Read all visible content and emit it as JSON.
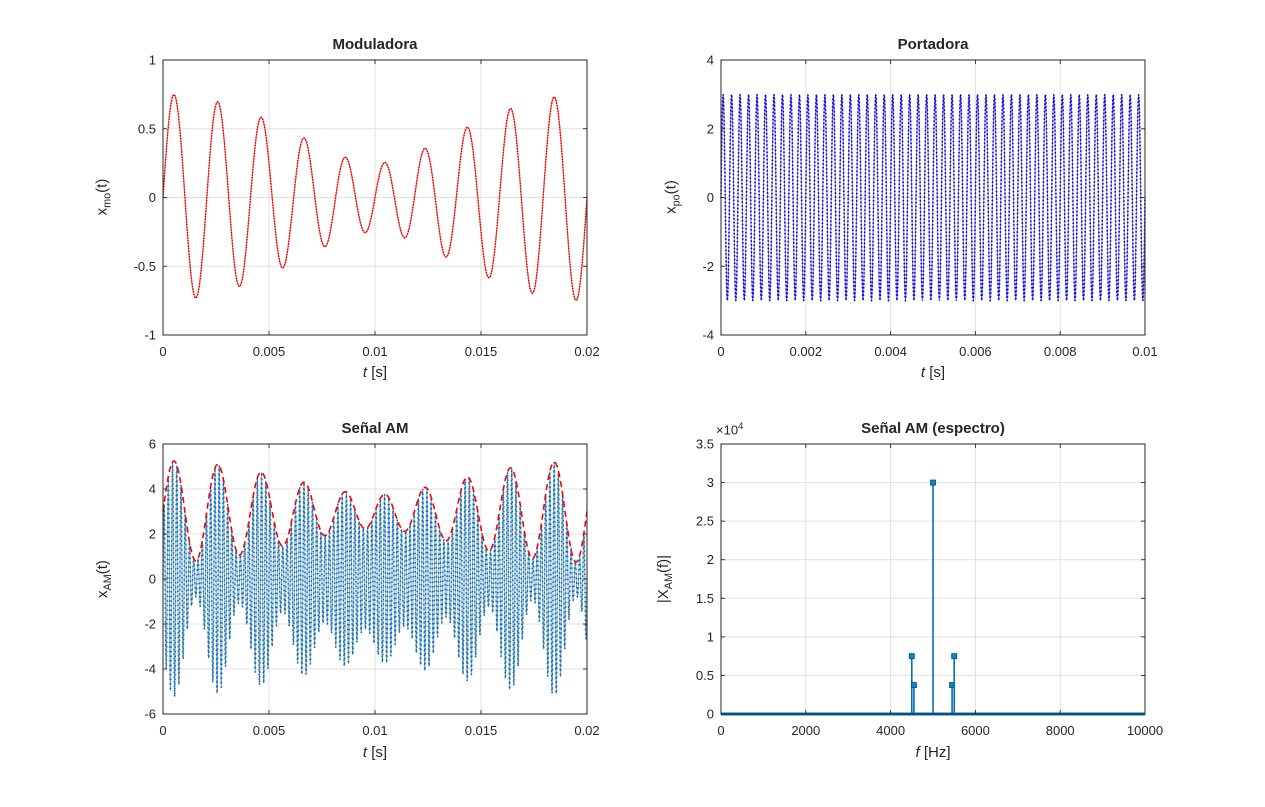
{
  "figure": {
    "background": "#ffffff",
    "axes_border_color": "#262626",
    "grid_color": "#e0e0e0",
    "tick_label_color": "#262626"
  },
  "chart_data": [
    {
      "id": "moduladora",
      "type": "line",
      "title": "Moduladora",
      "xlabel": "t [s]",
      "xlabel_var": "t",
      "xlabel_unit": " [s]",
      "ylabel": "x_mo(t)",
      "ylabel_base": "x",
      "ylabel_sub": "mo",
      "ylabel_rest": "(t)",
      "xlim": [
        0,
        0.02
      ],
      "ylim": [
        -1,
        1
      ],
      "xtick_values": [
        0,
        0.005,
        0.01,
        0.015,
        0.02
      ],
      "xtick_labels": [
        "0",
        "0.005",
        "0.01",
        "0.015",
        "0.02"
      ],
      "ytick_values": [
        -1,
        -0.5,
        0,
        0.5,
        1
      ],
      "ytick_labels": [
        "-1",
        "-0.5",
        "0",
        "0.5",
        "1"
      ],
      "grid": true,
      "box": true,
      "series": [
        {
          "name": "x_mo(t)",
          "signal": {
            "kind": "sum_of_sines",
            "components": [
              {
                "amplitude": 0.5,
                "freq_hz": 500
              },
              {
                "amplitude": 0.25,
                "freq_hz": 450
              }
            ]
          },
          "t_start": 0,
          "t_end": 0.02,
          "sample_rate_hz": 100000,
          "style": {
            "line_color": "#ff5050",
            "line_width": 1.1,
            "line_opacity": 0.85,
            "dot_color": "#e60000",
            "dot_gap": 2.6,
            "dot_size": 1.6
          }
        }
      ],
      "observed": {
        "peak_amplitude": 0.75,
        "beat_envelope_min": 0.25,
        "beat_freq_hz": 50
      }
    },
    {
      "id": "portadora",
      "type": "line",
      "title": "Portadora",
      "xlabel": "t [s]",
      "xlabel_var": "t",
      "xlabel_unit": " [s]",
      "ylabel": "x_po(t)",
      "ylabel_base": "x",
      "ylabel_sub": "po",
      "ylabel_rest": "(t)",
      "xlim": [
        0,
        0.01
      ],
      "ylim": [
        -4,
        4
      ],
      "xtick_values": [
        0,
        0.002,
        0.004,
        0.006,
        0.008,
        0.01
      ],
      "xtick_labels": [
        "0",
        "0.002",
        "0.004",
        "0.006",
        "0.008",
        "0.01"
      ],
      "ytick_values": [
        -4,
        -2,
        0,
        2,
        4
      ],
      "ytick_labels": [
        "-4",
        "-2",
        "0",
        "2",
        "4"
      ],
      "grid": true,
      "box": true,
      "series": [
        {
          "name": "x_po(t)",
          "signal": {
            "kind": "sum_of_sines",
            "components": [
              {
                "amplitude": 3,
                "freq_hz": 5000
              }
            ]
          },
          "t_start": 0,
          "t_end": 0.01,
          "sample_rate_hz": 100000,
          "style": {
            "line_color": "#7b7bf0",
            "line_width": 1.0,
            "line_opacity": 1,
            "dot_color": "#0a0ac8",
            "dot_gap": 3.6,
            "dot_size": 1.8
          }
        }
      ],
      "observed": {
        "carrier_amplitude": 3,
        "carrier_freq_hz": 5000
      }
    },
    {
      "id": "senal-am",
      "type": "line",
      "title": "Señal AM",
      "xlabel": "t [s]",
      "xlabel_var": "t",
      "xlabel_unit": " [s]",
      "ylabel": "x_AM(t)",
      "ylabel_base": "x",
      "ylabel_sub": "AM",
      "ylabel_rest": "(t)",
      "xlim": [
        0,
        0.02
      ],
      "ylim": [
        -6,
        6
      ],
      "xtick_values": [
        0,
        0.005,
        0.01,
        0.015,
        0.02
      ],
      "xtick_labels": [
        "0",
        "0.005",
        "0.01",
        "0.015",
        "0.02"
      ],
      "ytick_values": [
        -6,
        -4,
        -2,
        0,
        2,
        4,
        6
      ],
      "ytick_labels": [
        "-6",
        "-4",
        "-2",
        "0",
        "2",
        "4",
        "6"
      ],
      "grid": true,
      "box": true,
      "series": [
        {
          "name": "x_AM(t)",
          "signal": {
            "kind": "am",
            "carrier_amplitude": 3,
            "carrier_freq_hz": 5000,
            "mod_components": [
              {
                "amplitude": 0.5,
                "freq_hz": 500
              },
              {
                "amplitude": 0.25,
                "freq_hz": 450
              }
            ]
          },
          "t_start": 0,
          "t_end": 0.02,
          "sample_rate_hz": 100000,
          "style": {
            "line_color": "#6aa6d4",
            "line_width": 1.0,
            "line_opacity": 0.9,
            "dot_color": "#14699f",
            "dot_gap": 4.5,
            "dot_size": 1.7
          }
        },
        {
          "name": "envelope",
          "signal": {
            "kind": "am_envelope",
            "carrier_amplitude": 3,
            "carrier_freq_hz": 5000,
            "mod_components": [
              {
                "amplitude": 0.5,
                "freq_hz": 500
              },
              {
                "amplitude": 0.25,
                "freq_hz": 450
              }
            ]
          },
          "t_start": 0,
          "t_end": 0.02,
          "sample_rate_hz": 50000,
          "style": {
            "line_color": "#ff0000",
            "line_width": 1.6,
            "dash": [
              6,
              4
            ]
          }
        }
      ],
      "observed": {
        "envelope_max": 5.25,
        "envelope_min": 0.75
      }
    },
    {
      "id": "espectro",
      "type": "stem",
      "title": "Señal AM (espectro)",
      "xlabel": "f [Hz]",
      "xlabel_var": "f",
      "xlabel_unit": " [Hz]",
      "ylabel": "|X_AM(f)|",
      "ylabel_base": "|X",
      "ylabel_sub": "AM",
      "ylabel_rest": "(f)|",
      "multiplier_prefix": "×10",
      "multiplier_exp": "4",
      "xlim": [
        0,
        10000
      ],
      "ylim": [
        0,
        35000
      ],
      "xtick_values": [
        0,
        2000,
        4000,
        6000,
        8000,
        10000
      ],
      "xtick_labels": [
        "0",
        "2000",
        "4000",
        "6000",
        "8000",
        "10000"
      ],
      "ytick_values": [
        0,
        5000,
        10000,
        15000,
        20000,
        25000,
        30000,
        35000
      ],
      "ytick_labels": [
        "0",
        "0.5",
        "1",
        "1.5",
        "2",
        "2.5",
        "3",
        "3.5"
      ],
      "grid": true,
      "box": true,
      "stems": [
        {
          "freq_hz": 4500,
          "magnitude": 7500
        },
        {
          "freq_hz": 4550,
          "magnitude": 3750
        },
        {
          "freq_hz": 5000,
          "magnitude": 30000
        },
        {
          "freq_hz": 5450,
          "magnitude": 3750
        },
        {
          "freq_hz": 5500,
          "magnitude": 7500
        }
      ],
      "baseline": {
        "from_hz": 0,
        "to_hz": 10000,
        "magnitude": 0
      },
      "style": {
        "stem_color": "#0072bd",
        "stem_width": 1.6,
        "baseline_width": 3,
        "marker_fill": "#1780c2",
        "marker_edge": "#00578f",
        "marker_size": 5
      }
    }
  ]
}
